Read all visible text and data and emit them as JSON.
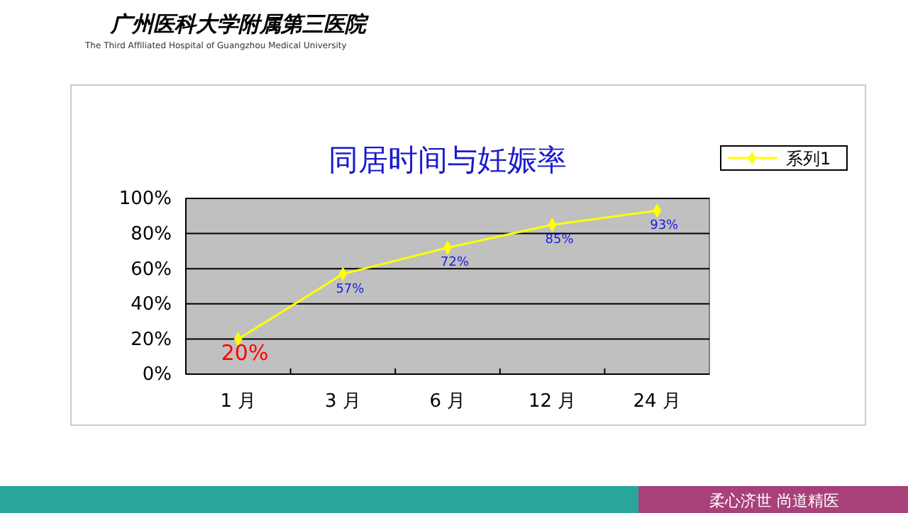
{
  "chart_data": {
    "type": "line",
    "title": "同居时间与妊娠率",
    "categories": [
      "1 月",
      "3 月",
      "6 月",
      "12 月",
      "24 月"
    ],
    "series": [
      {
        "name": "系列1",
        "color": "#ffff00",
        "values": [
          20,
          57,
          72,
          85,
          93
        ],
        "value_labels": [
          "20%",
          "57%",
          "72%",
          "85%",
          "93%"
        ]
      }
    ],
    "ylim": [
      0,
      100
    ],
    "yticks": [
      {
        "value": 0,
        "label": "0%"
      },
      {
        "value": 20,
        "label": "20%"
      },
      {
        "value": 40,
        "label": "40%"
      },
      {
        "value": 60,
        "label": "60%"
      },
      {
        "value": 80,
        "label": "80%"
      },
      {
        "value": 100,
        "label": "100%"
      }
    ],
    "grid": "y",
    "legend": "top right",
    "marker": "diamond",
    "line_style": "solid",
    "annotations": [
      "广州医科大学附属第三医院",
      "The Third Affiliated Hospital of Guangzhou Medical University",
      "柔心济世 尚道精医"
    ]
  }
}
